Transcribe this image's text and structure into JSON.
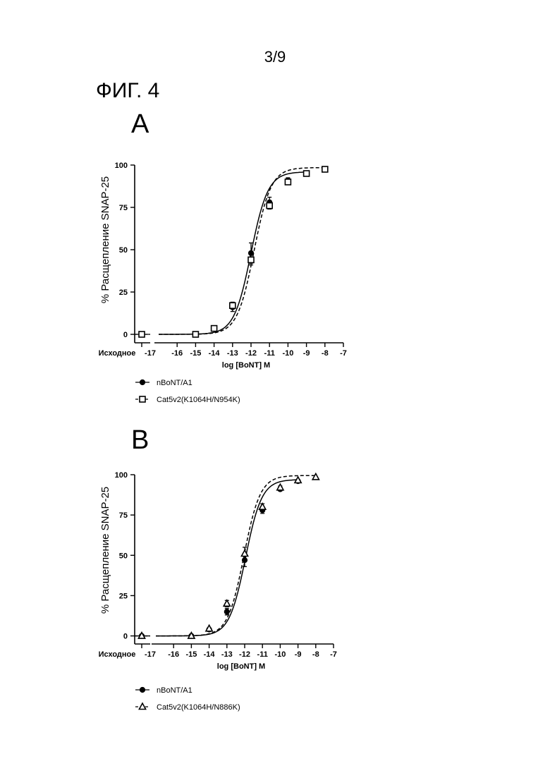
{
  "page_number": "3/9",
  "figure_title": "ФИГ. 4",
  "panels": [
    {
      "label": "A"
    },
    {
      "label": "B"
    }
  ],
  "chart_data": [
    {
      "type": "line",
      "panel": "A",
      "xlabel": "log [BoNT] M",
      "ylabel": "% Расщепление SNAP-25",
      "x_ticks": [
        "Исходное",
        "-17",
        "-16",
        "-15",
        "-14",
        "-13",
        "-12",
        "-11",
        "-10",
        "-9",
        "-8",
        "-7"
      ],
      "y_ticks": [
        "0",
        "25",
        "50",
        "75",
        "100"
      ],
      "xlim": [
        -17,
        -7
      ],
      "ylim": [
        -5,
        100
      ],
      "series": [
        {
          "name": "nBoNT/A1",
          "marker": "circle",
          "line": "solid",
          "baseline": 0,
          "x": [
            -15,
            -14,
            -13,
            -12,
            -11,
            -10,
            -9
          ],
          "y": [
            0,
            3.5,
            16,
            48,
            78,
            91,
            95
          ],
          "err": [
            0,
            0,
            2.5,
            6,
            3,
            1.5,
            0
          ]
        },
        {
          "name": "Cat5v2(K1064H/N954K)",
          "marker": "square-open",
          "line": "dashed",
          "baseline": 0,
          "x": [
            -15,
            -14,
            -13,
            -12,
            -11,
            -10,
            -9,
            -8
          ],
          "y": [
            0,
            3.5,
            17,
            44,
            76,
            90,
            95,
            97.5
          ],
          "err": [
            0,
            0,
            2,
            3,
            2,
            1.5,
            0,
            0
          ]
        }
      ]
    },
    {
      "type": "line",
      "panel": "B",
      "xlabel": "log [BoNT] M",
      "ylabel": "% Расщепление SNAP-25",
      "x_ticks": [
        "Исходное",
        "-17",
        "-16",
        "-15",
        "-14",
        "-13",
        "-12",
        "-11",
        "-10",
        "-9",
        "-8",
        "-7"
      ],
      "y_ticks": [
        "0",
        "25",
        "50",
        "75",
        "100"
      ],
      "xlim": [
        -17,
        -7
      ],
      "ylim": [
        -5,
        100
      ],
      "series": [
        {
          "name": "nBoNT/A1",
          "marker": "circle",
          "line": "solid",
          "baseline": 0,
          "x": [
            -15,
            -14,
            -13,
            -12,
            -11,
            -10,
            -9
          ],
          "y": [
            0,
            4,
            15,
            47,
            78,
            91,
            96
          ],
          "err": [
            0,
            0,
            2,
            4,
            2,
            1,
            0
          ]
        },
        {
          "name": "Cat5v2(K1064H/N886K)",
          "marker": "triangle-open",
          "line": "dashed",
          "baseline": 0,
          "x": [
            -15,
            -14,
            -13,
            -12,
            -11,
            -10,
            -9,
            -8
          ],
          "y": [
            0,
            4.5,
            20,
            51,
            80,
            92,
            96.5,
            98.5
          ],
          "err": [
            0,
            0,
            2,
            4,
            2,
            1,
            0,
            0
          ]
        }
      ]
    }
  ]
}
